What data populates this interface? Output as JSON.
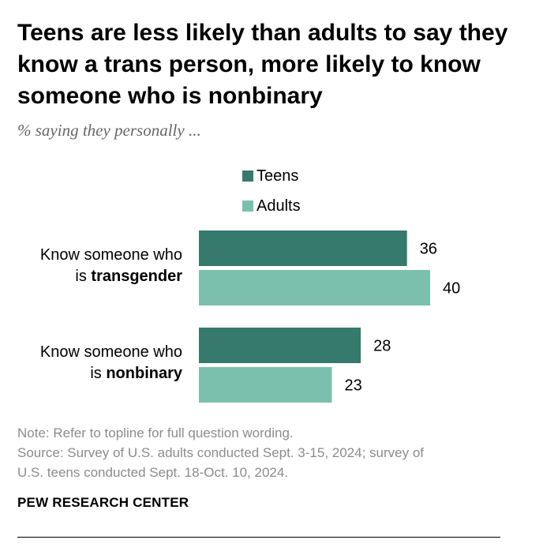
{
  "chart_data": {
    "type": "bar",
    "orientation": "horizontal",
    "title": "Teens are less likely than adults to say they know a trans person, more likely to know someone who is nonbinary",
    "subtitle": "% saying they personally ...",
    "categories": [
      {
        "prefix": "Know someone who",
        "line2_pre": "is ",
        "emphasis": "transgender"
      },
      {
        "prefix": "Know someone who",
        "line2_pre": "is ",
        "emphasis": "nonbinary"
      }
    ],
    "series": [
      {
        "name": "Teens",
        "color": "#357a6d",
        "values": [
          36,
          28
        ]
      },
      {
        "name": "Adults",
        "color": "#7bc0ad",
        "values": [
          40,
          23
        ]
      }
    ],
    "xlim": [
      0,
      40
    ],
    "grid": false,
    "legend_position": "top"
  },
  "notes": {
    "note": "Note: Refer to topline for full question wording.",
    "source_line1": "Source: Survey of U.S. adults conducted Sept. 3-15, 2024; survey of",
    "source_line2": "U.S. teens conducted Sept. 18-Oct. 10, 2024."
  },
  "brand": "PEW RESEARCH CENTER"
}
